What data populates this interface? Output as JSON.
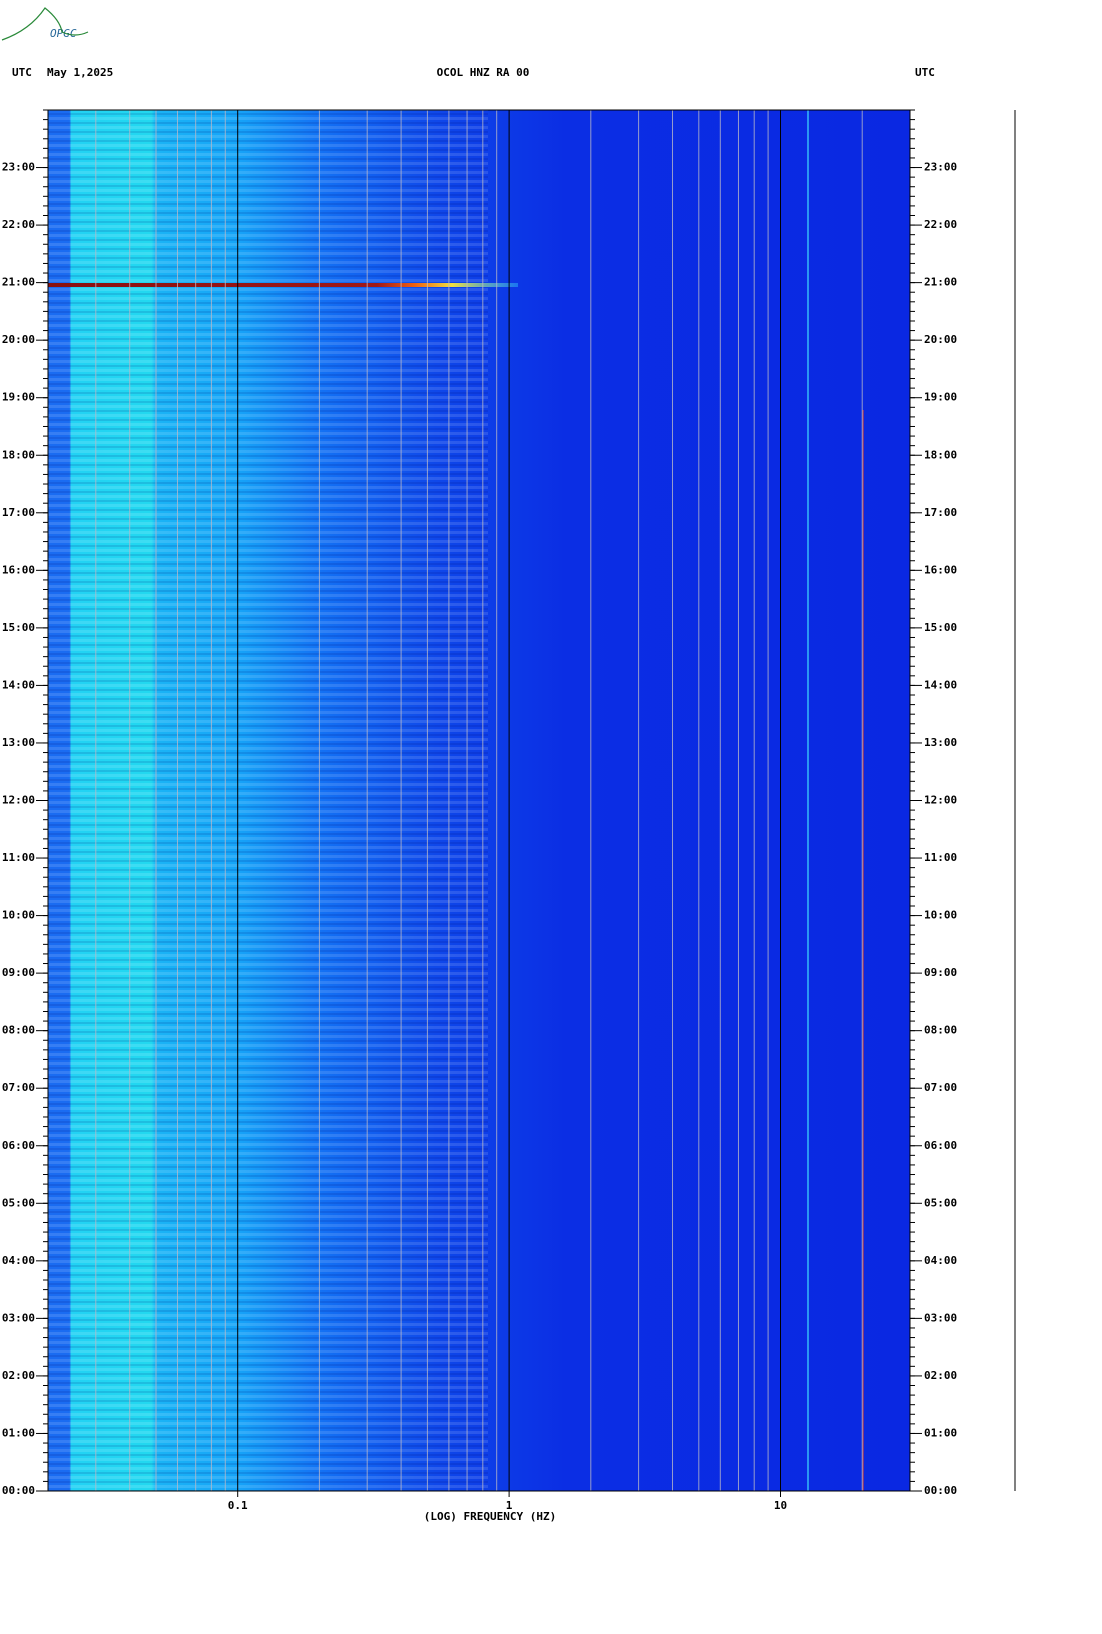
{
  "chart_data": {
    "type": "spectrogram",
    "logo": "OPGC",
    "title": "OCOL HNZ RA 00",
    "date": "May 1,2025",
    "left_label": "UTC",
    "right_label": "UTC",
    "xlabel": "(LOG) FREQUENCY (HZ)",
    "xscale": "log",
    "xlim": [
      0.02,
      30
    ],
    "xticks": [
      0.1,
      1,
      10
    ],
    "xgridlines": [
      0.03,
      0.04,
      0.05,
      0.06,
      0.07,
      0.08,
      0.09,
      0.2,
      0.3,
      0.4,
      0.5,
      0.6,
      0.7,
      0.8,
      0.9,
      2,
      3,
      4,
      5,
      6,
      7,
      8,
      9,
      20
    ],
    "ylim": [
      0,
      24
    ],
    "yticks": [
      {
        "value": 0,
        "label": "00:00"
      },
      {
        "value": 1,
        "label": "01:00"
      },
      {
        "value": 2,
        "label": "02:00"
      },
      {
        "value": 3,
        "label": "03:00"
      },
      {
        "value": 4,
        "label": "04:00"
      },
      {
        "value": 5,
        "label": "05:00"
      },
      {
        "value": 6,
        "label": "06:00"
      },
      {
        "value": 7,
        "label": "07:00"
      },
      {
        "value": 8,
        "label": "08:00"
      },
      {
        "value": 9,
        "label": "09:00"
      },
      {
        "value": 10,
        "label": "10:00"
      },
      {
        "value": 11,
        "label": "11:00"
      },
      {
        "value": 12,
        "label": "12:00"
      },
      {
        "value": 13,
        "label": "13:00"
      },
      {
        "value": 14,
        "label": "14:00"
      },
      {
        "value": 15,
        "label": "15:00"
      },
      {
        "value": 16,
        "label": "16:00"
      },
      {
        "value": 17,
        "label": "17:00"
      },
      {
        "value": 18,
        "label": "18:00"
      },
      {
        "value": 19,
        "label": "19:00"
      },
      {
        "value": 20,
        "label": "20:00"
      },
      {
        "value": 21,
        "label": "21:00"
      },
      {
        "value": 22,
        "label": "22:00"
      },
      {
        "value": 23,
        "label": "23:00"
      }
    ]
  }
}
